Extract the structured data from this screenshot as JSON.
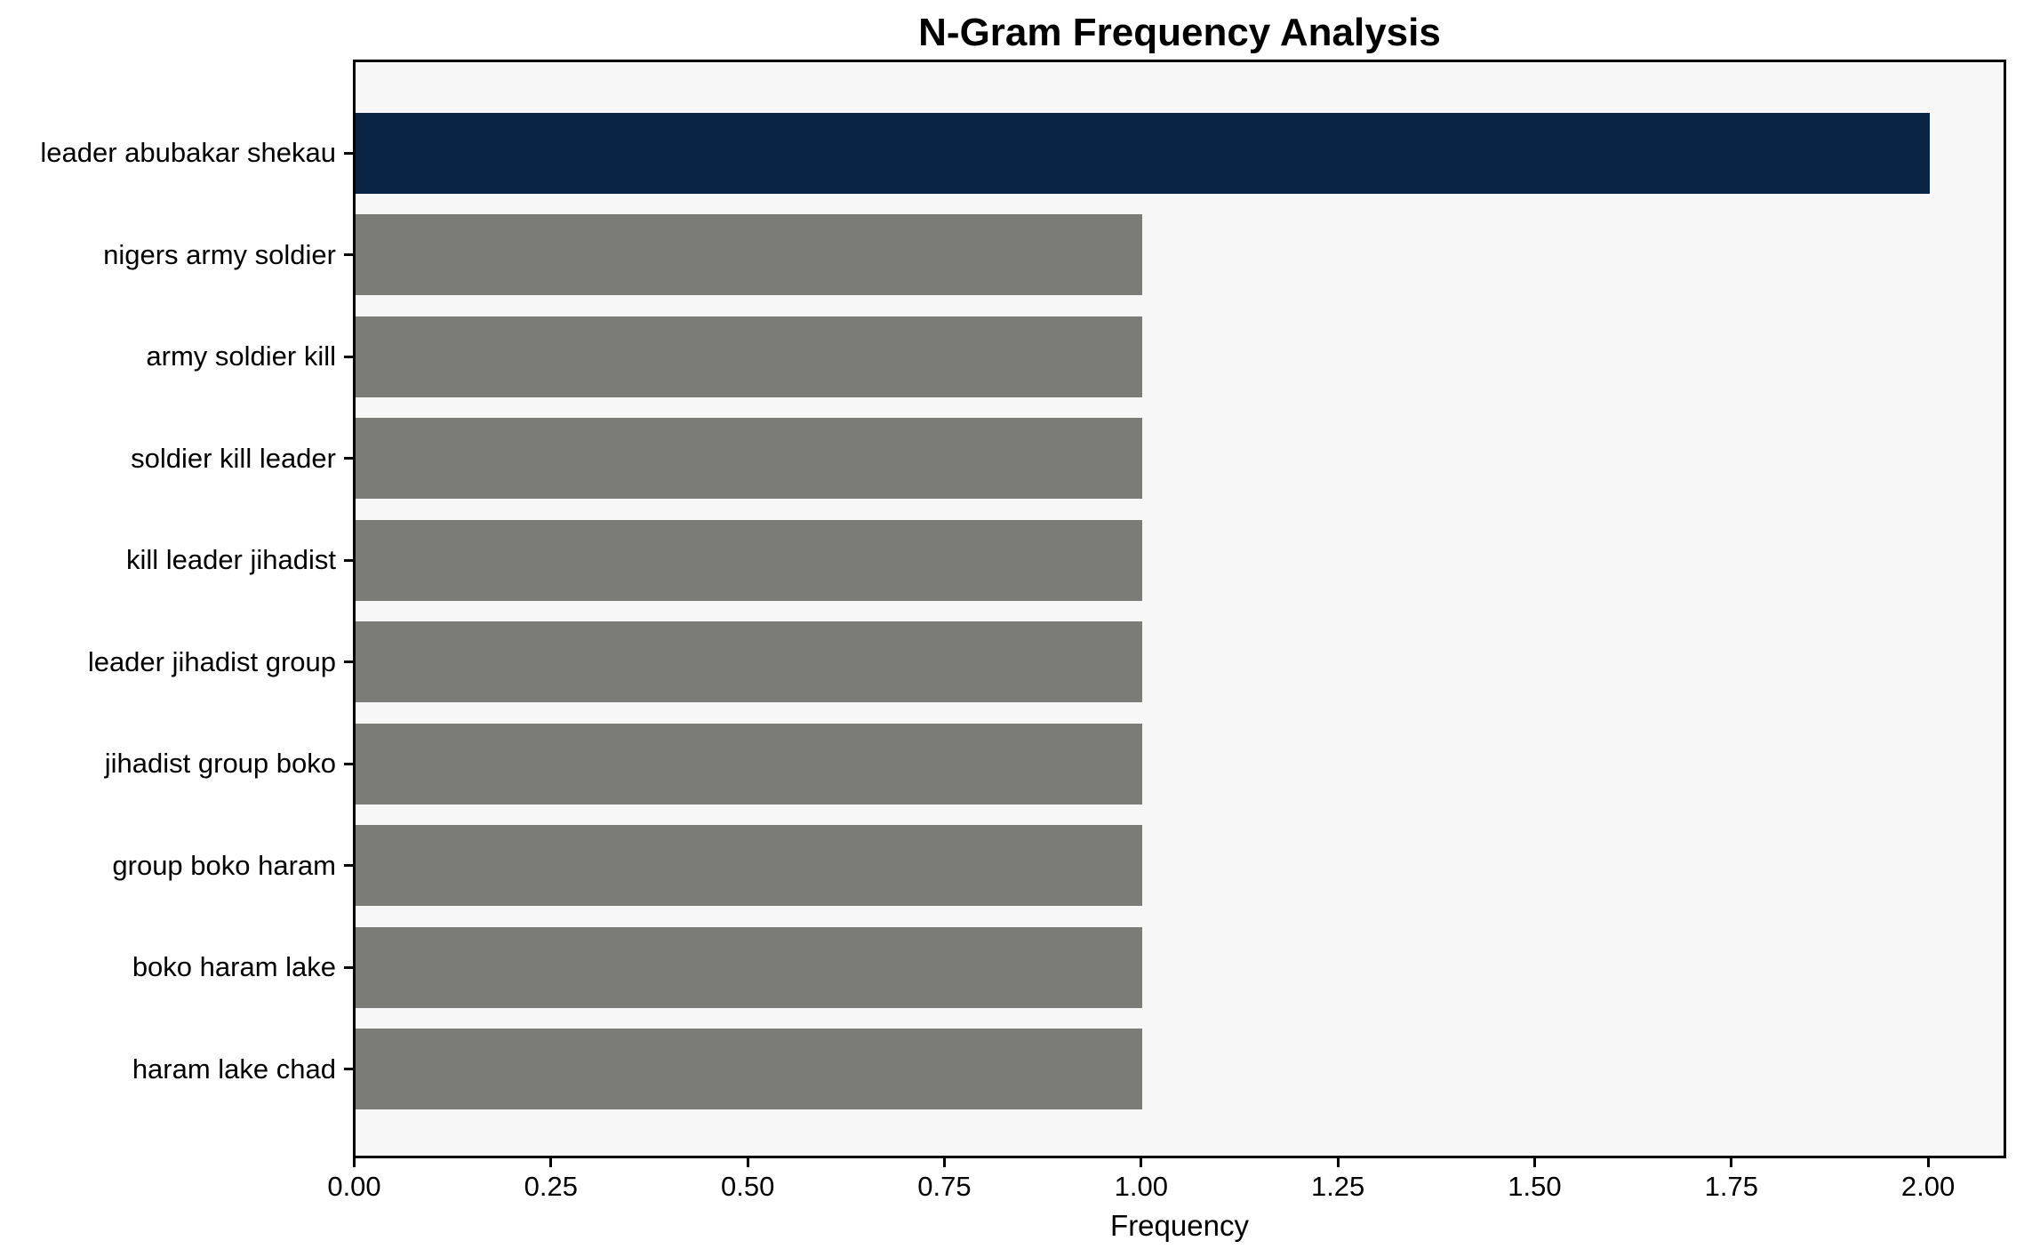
{
  "chart_data": {
    "type": "bar",
    "orientation": "horizontal",
    "title": "N-Gram Frequency Analysis",
    "xlabel": "Frequency",
    "ylabel": "",
    "categories": [
      "leader abubakar shekau",
      "nigers army soldier",
      "army soldier kill",
      "soldier kill leader",
      "kill leader jihadist",
      "leader jihadist group",
      "jihadist group boko",
      "group boko haram",
      "boko haram lake",
      "haram lake chad"
    ],
    "values": [
      2,
      1,
      1,
      1,
      1,
      1,
      1,
      1,
      1,
      1
    ],
    "bar_colors": [
      "#0a2446",
      "#7b7b78",
      "#7b7b78",
      "#7b7b78",
      "#7b7b78",
      "#7b7b78",
      "#7b7b78",
      "#7b7b78",
      "#7b7b78",
      "#7b7b78"
    ],
    "highlight_color": "#0a2446",
    "default_color": "#7b7b78",
    "plot_background": "#f7f7f7",
    "spine_color": "#000000",
    "grid": false,
    "legend": null,
    "xlim": [
      0,
      2.1
    ],
    "xticks": [
      "0.00",
      "0.25",
      "0.50",
      "0.75",
      "1.00",
      "1.25",
      "1.50",
      "1.75",
      "2.00"
    ],
    "xtick_values": [
      0,
      0.25,
      0.5,
      0.75,
      1.0,
      1.25,
      1.5,
      1.75,
      2.0
    ]
  }
}
